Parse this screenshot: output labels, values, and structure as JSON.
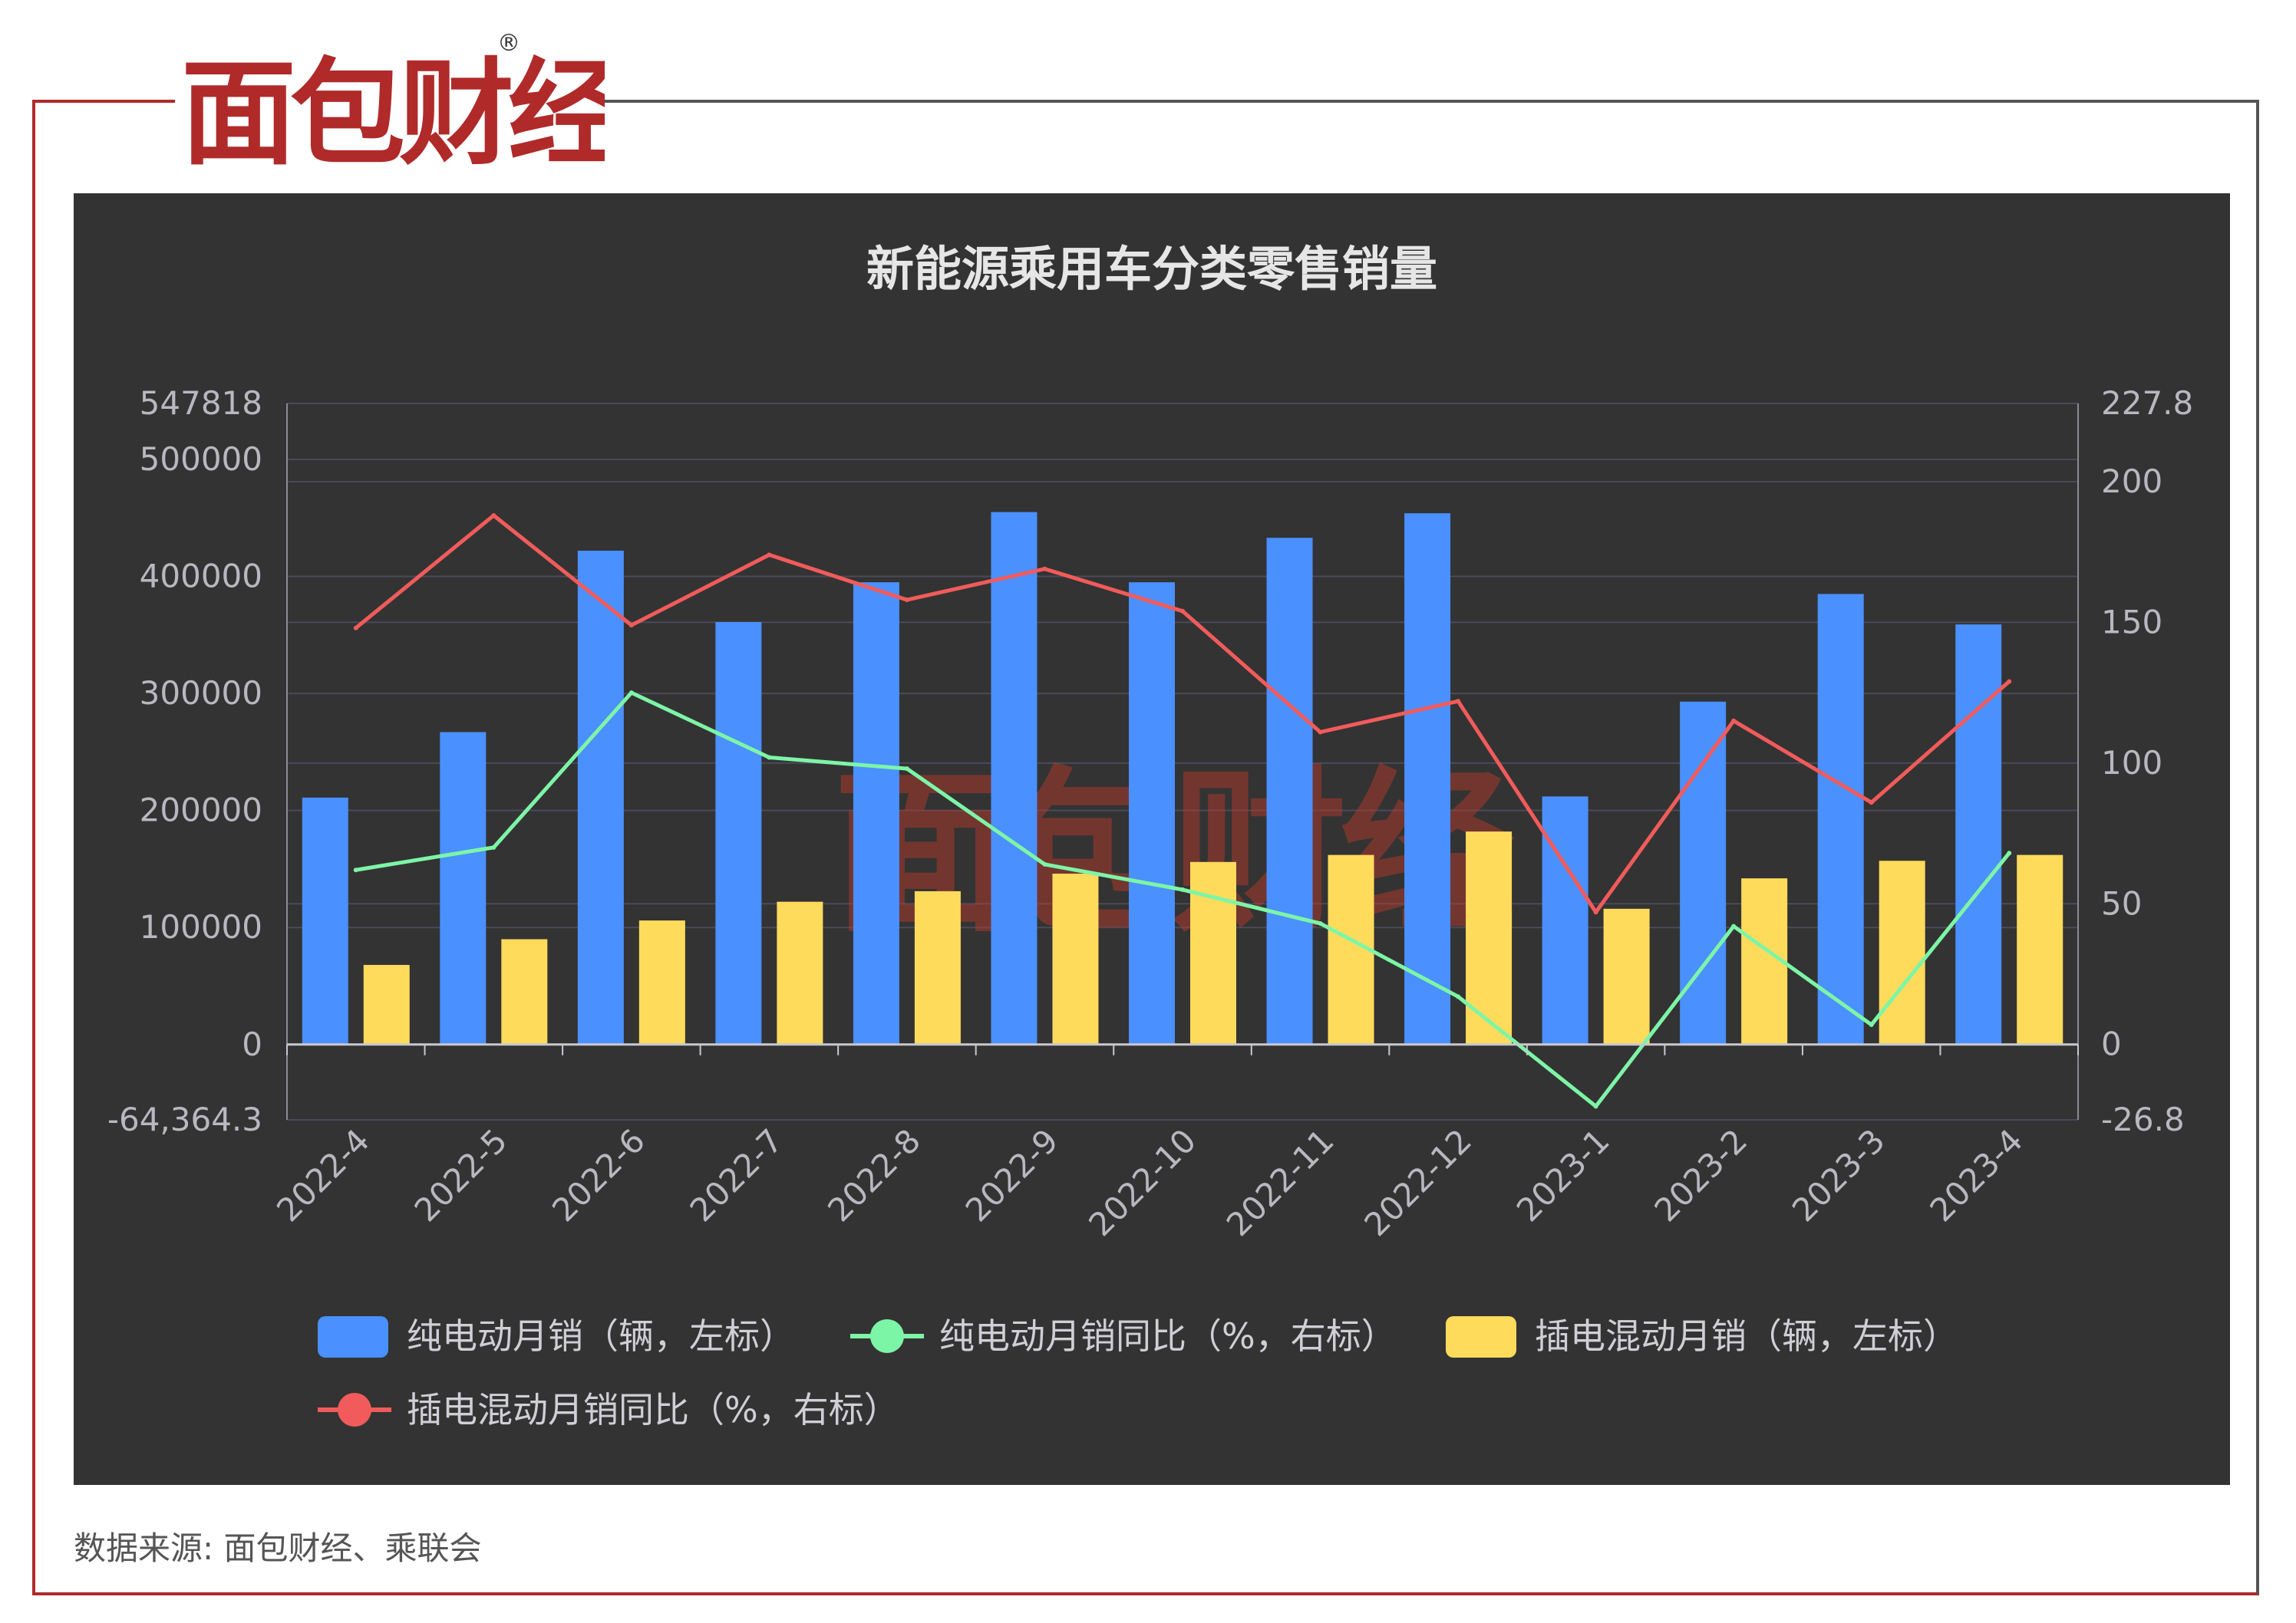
{
  "logo": {
    "text": "面包财经",
    "registered_mark": "®",
    "color": "#b02a2a"
  },
  "watermark": {
    "text": "面包财经"
  },
  "source": "数据来源: 面包财经、乘联会",
  "chart_data": {
    "type": "bar",
    "title": "新能源乘用车分类零售销量",
    "categories": [
      "2022-4",
      "2022-5",
      "2022-6",
      "2022-7",
      "2022-8",
      "2022-9",
      "2022-10",
      "2022-11",
      "2022-12",
      "2023-1",
      "2023-2",
      "2023-3",
      "2023-4"
    ],
    "y_left": {
      "min": -64364.3,
      "max": 547818,
      "ticks": [
        0,
        100000,
        200000,
        300000,
        400000,
        500000
      ],
      "min_label": "-64,364.3",
      "max_label": "547818"
    },
    "y_right": {
      "min": -26.8,
      "max": 227.8,
      "ticks": [
        0,
        50,
        100,
        150,
        200
      ],
      "min_label": "-26.8",
      "max_label": "227.8"
    },
    "grid": true,
    "legend_position": "bottom",
    "series": [
      {
        "name": "纯电动月销（辆，左标）",
        "type": "bar",
        "axis": "left",
        "color": "#4a90ff",
        "values": [
          211000,
          267000,
          422000,
          361000,
          395000,
          455000,
          395000,
          433000,
          454000,
          212000,
          293000,
          385000,
          359000
        ]
      },
      {
        "name": "纯电动月销同比（%，右标）",
        "type": "line",
        "axis": "right",
        "color": "#7df5a6",
        "values": [
          62,
          70,
          125,
          102,
          98,
          64,
          55,
          43,
          17,
          -22,
          42,
          7,
          68
        ]
      },
      {
        "name": "插电混动月销（辆，左标）",
        "type": "bar",
        "axis": "left",
        "color": "#ffdb5c",
        "values": [
          68000,
          90000,
          106000,
          122000,
          131000,
          146000,
          156000,
          162000,
          182000,
          116000,
          142000,
          157000,
          162000
        ]
      },
      {
        "name": "插电混动月销同比（%，右标）",
        "type": "line",
        "axis": "right",
        "color": "#f25b5b",
        "values": [
          148,
          188,
          149,
          174,
          158,
          169,
          154,
          111,
          122,
          47,
          115,
          86,
          129
        ]
      }
    ]
  }
}
